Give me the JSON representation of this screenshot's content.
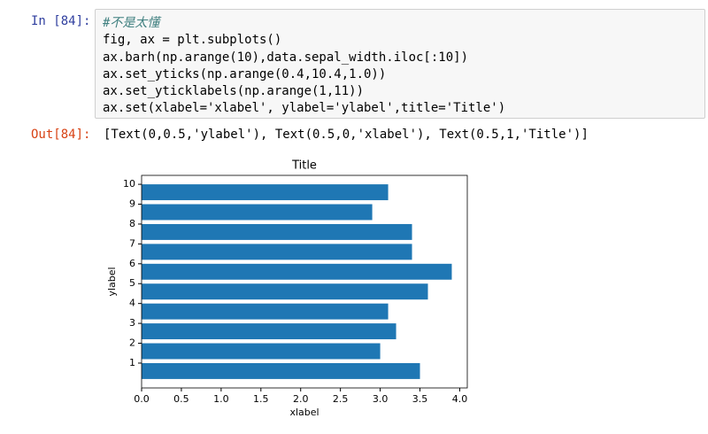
{
  "cell": {
    "prompt_in": "In [84]:",
    "code": [
      "#不是太懂",
      "fig, ax = plt.subplots()",
      "ax.barh(np.arange(10),data.sepal_width.iloc[:10])",
      "ax.set_yticks(np.arange(0.4,10.4,1.0))",
      "ax.set_yticklabels(np.arange(1,11))",
      "ax.set(xlabel='xlabel', ylabel='ylabel',title='Title')"
    ],
    "prompt_out": "Out[84]:",
    "output": "[Text(0,0.5,'ylabel'), Text(0.5,0,'xlabel'), Text(0.5,1,'Title')]"
  },
  "chart_data": {
    "type": "barh",
    "title": "Title",
    "x_label": "xlabel",
    "y_label": "ylabel",
    "values": [
      3.5,
      3.0,
      3.2,
      3.1,
      3.6,
      3.9,
      3.4,
      3.4,
      2.9,
      3.1
    ],
    "color": "#1f77b4",
    "xlim": [
      0,
      4.095
    ],
    "xticks": [
      {
        "value": 0,
        "label": "0.0"
      },
      0.5,
      {
        "value": 1,
        "label": "1.0"
      },
      1.5,
      {
        "value": 2,
        "label": "2.0"
      },
      2.5,
      {
        "value": 3,
        "label": "3.0"
      },
      3.5,
      {
        "value": 4,
        "label": "4.0"
      }
    ],
    "ylim": [
      -0.85,
      9.85
    ],
    "yticks": [
      {
        "value": 0.4,
        "label": "1"
      },
      {
        "value": 1.4,
        "label": "2"
      },
      {
        "value": 2.4,
        "label": "3"
      },
      {
        "value": 3.4,
        "label": "4"
      },
      {
        "value": 4.4,
        "label": "5"
      },
      {
        "value": 5.4,
        "label": "6"
      },
      {
        "value": 6.4,
        "label": "7"
      },
      {
        "value": 7.4,
        "label": "8"
      },
      {
        "value": 8.4,
        "label": "9"
      },
      {
        "value": 9.4,
        "label": "10"
      }
    ],
    "grid": false
  }
}
